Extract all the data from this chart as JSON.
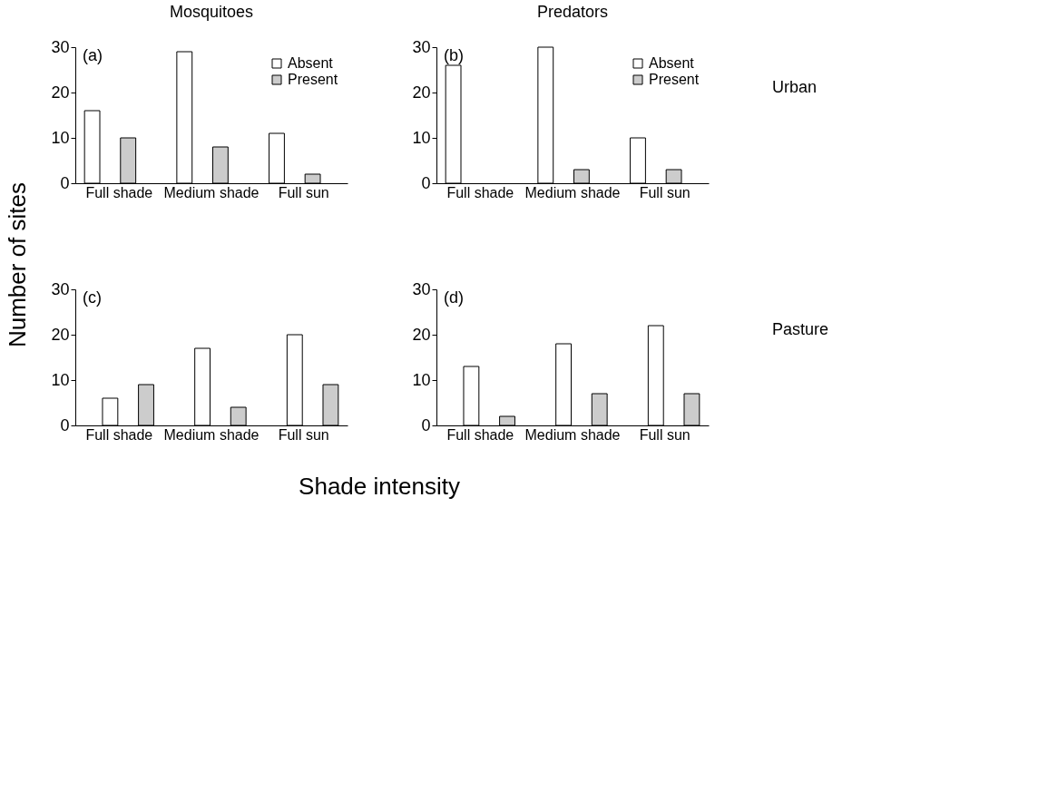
{
  "chart_data": [
    {
      "type": "bar",
      "title": "Mosquitoes",
      "ylabel": "Number of sites",
      "annotations": [
        "(a)"
      ],
      "categories": [
        "Full shade",
        "Medium shade",
        "Full sun"
      ],
      "series": [
        {
          "name": "Absent",
          "color": "#ffffff",
          "values": [
            16,
            29,
            11
          ]
        },
        {
          "name": "Present",
          "color": "#cccccc",
          "values": [
            10,
            8,
            2
          ]
        }
      ],
      "ylim": [
        0,
        30
      ],
      "yticks": [
        0,
        10,
        20,
        30
      ],
      "grid": false,
      "legend": "top right"
    },
    {
      "type": "bar",
      "title": "Predators",
      "annotations": [
        "(b)",
        "Urban"
      ],
      "categories": [
        "Full shade",
        "Medium shade",
        "Full sun"
      ],
      "series": [
        {
          "name": "Absent",
          "color": "#ffffff",
          "values": [
            26,
            30,
            10
          ]
        },
        {
          "name": "Present",
          "color": "#cccccc",
          "values": [
            0,
            3,
            3
          ]
        }
      ],
      "ylim": [
        0,
        30
      ],
      "yticks": [
        0,
        10,
        20,
        30
      ],
      "grid": false,
      "legend": "top right"
    },
    {
      "type": "bar",
      "xlabel": "Shade intensity",
      "annotations": [
        "(c)"
      ],
      "categories": [
        "Full shade",
        "Medium shade",
        "Full sun"
      ],
      "series": [
        {
          "color": "#ffffff",
          "values": [
            6,
            17,
            20
          ]
        },
        {
          "color": "#cccccc",
          "values": [
            9,
            4,
            9
          ]
        }
      ],
      "ylim": [
        0,
        30
      ],
      "yticks": [
        0,
        10,
        20,
        30
      ],
      "grid": false
    },
    {
      "type": "bar",
      "annotations": [
        "(d)",
        "Pasture"
      ],
      "categories": [
        "Full shade",
        "Medium shade",
        "Full sun"
      ],
      "series": [
        {
          "color": "#ffffff",
          "values": [
            13,
            18,
            22
          ]
        },
        {
          "color": "#cccccc",
          "values": [
            2,
            7,
            7
          ]
        }
      ],
      "ylim": [
        0,
        30
      ],
      "yticks": [
        0,
        10,
        20,
        30
      ],
      "grid": false
    }
  ]
}
